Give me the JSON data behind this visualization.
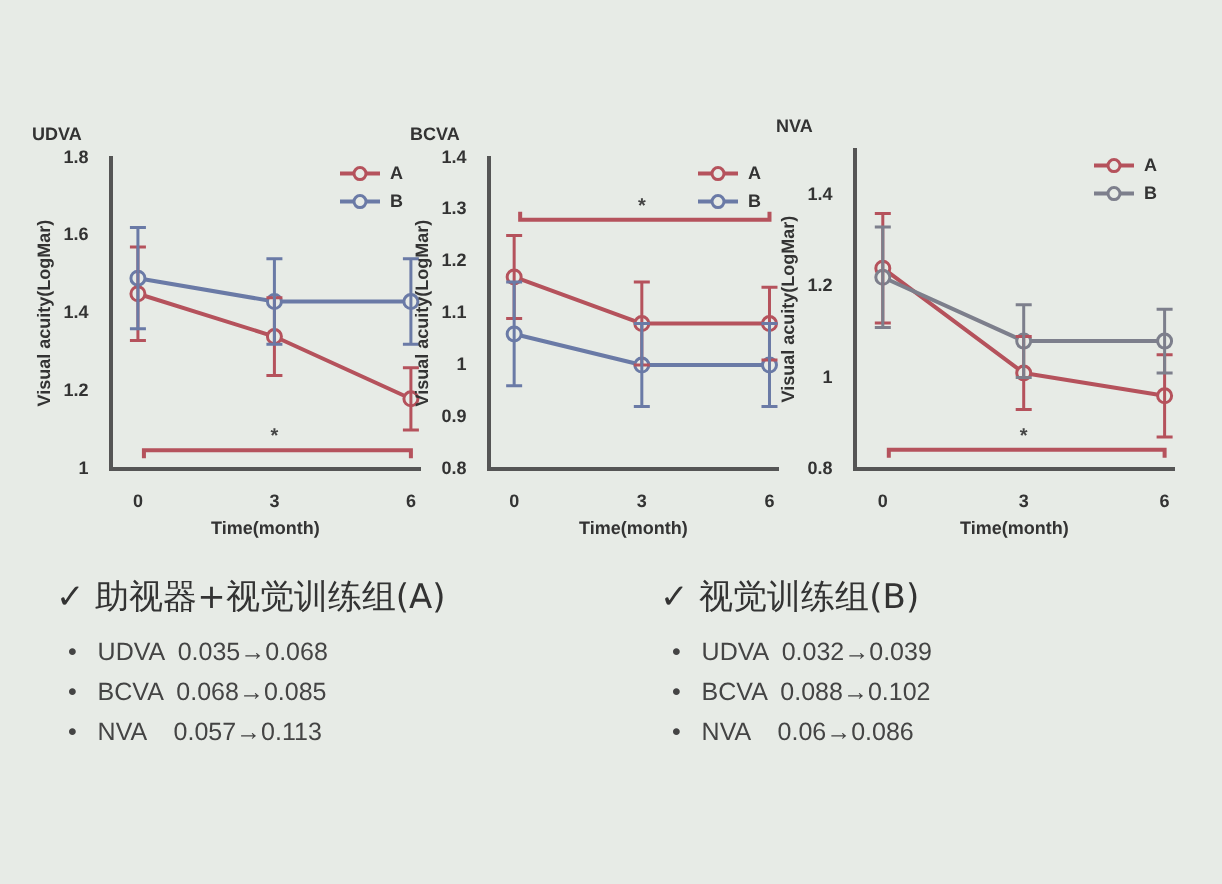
{
  "chart_data": [
    {
      "type": "line",
      "title": "UDVA",
      "xlabel": "Time(month)",
      "ylabel": "Visual acuity(LogMar)",
      "x": [
        0,
        3,
        6
      ],
      "xlim": [
        -0.6,
        6.2
      ],
      "xticks": [
        0,
        3,
        6
      ],
      "ylim": [
        1.0,
        1.8
      ],
      "yticks": [
        1.0,
        1.2,
        1.4,
        1.6,
        1.8
      ],
      "marker": "circle",
      "legend": "top right",
      "annotations": [
        "*"
      ],
      "series": [
        {
          "name": "A",
          "color": "#b5525c",
          "values": [
            1.45,
            1.34,
            1.18
          ],
          "errors": [
            0.12,
            0.1,
            0.08
          ]
        },
        {
          "name": "B",
          "color": "#6a7aa6",
          "values": [
            1.49,
            1.43,
            1.43
          ],
          "errors": [
            0.13,
            0.11,
            0.11
          ]
        }
      ]
    },
    {
      "type": "line",
      "title": "BCVA",
      "xlabel": "Time(month)",
      "ylabel": "Visual acuity(LogMar)",
      "x": [
        0,
        3,
        6
      ],
      "xlim": [
        -0.6,
        6.2
      ],
      "xticks": [
        0,
        3,
        6
      ],
      "ylim": [
        0.8,
        1.4
      ],
      "yticks": [
        0.8,
        0.9,
        1.0,
        1.1,
        1.2,
        1.3,
        1.4
      ],
      "marker": "circle",
      "legend": "top right",
      "annotations": [
        "*"
      ],
      "series": [
        {
          "name": "A",
          "color": "#b5525c",
          "values": [
            1.17,
            1.08,
            1.08
          ],
          "errors": [
            0.08,
            0.08,
            0.07
          ]
        },
        {
          "name": "B",
          "color": "#6a7aa6",
          "values": [
            1.06,
            1.0,
            1.0
          ],
          "errors": [
            0.1,
            0.08,
            0.08
          ]
        }
      ]
    },
    {
      "type": "line",
      "title": "NVA",
      "xlabel": "Time(month)",
      "ylabel": "Visual acuity(LogMar)",
      "x": [
        0,
        3,
        6
      ],
      "xlim": [
        -0.6,
        6.2
      ],
      "xticks": [
        0,
        3,
        6
      ],
      "ylim": [
        0.8,
        1.5
      ],
      "yticks": [
        0.8,
        1.0,
        1.2,
        1.4
      ],
      "marker": "circle",
      "legend": "top right",
      "annotations": [
        "*"
      ],
      "series": [
        {
          "name": "A",
          "color": "#b5525c",
          "values": [
            1.24,
            1.01,
            0.96
          ],
          "errors": [
            0.12,
            0.08,
            0.09
          ]
        },
        {
          "name": "B",
          "color": "#7d7f8c",
          "values": [
            1.22,
            1.08,
            1.08
          ],
          "errors": [
            0.11,
            0.08,
            0.07
          ]
        }
      ]
    },
    {
      "type": "other",
      "title": "✓ 助视器+视觉训练组(A)",
      "annotations": [
        "•   UDVA  0.035→0.068",
        "•   BCVA  0.068→0.085",
        "•   NVA    0.057→0.113"
      ]
    },
    {
      "type": "other",
      "title": "✓ 视觉训练组(B)",
      "annotations": [
        "•   UDVA  0.032→0.039",
        "•   BCVA  0.088→0.102",
        "•   NVA    0.06→0.086"
      ]
    }
  ]
}
